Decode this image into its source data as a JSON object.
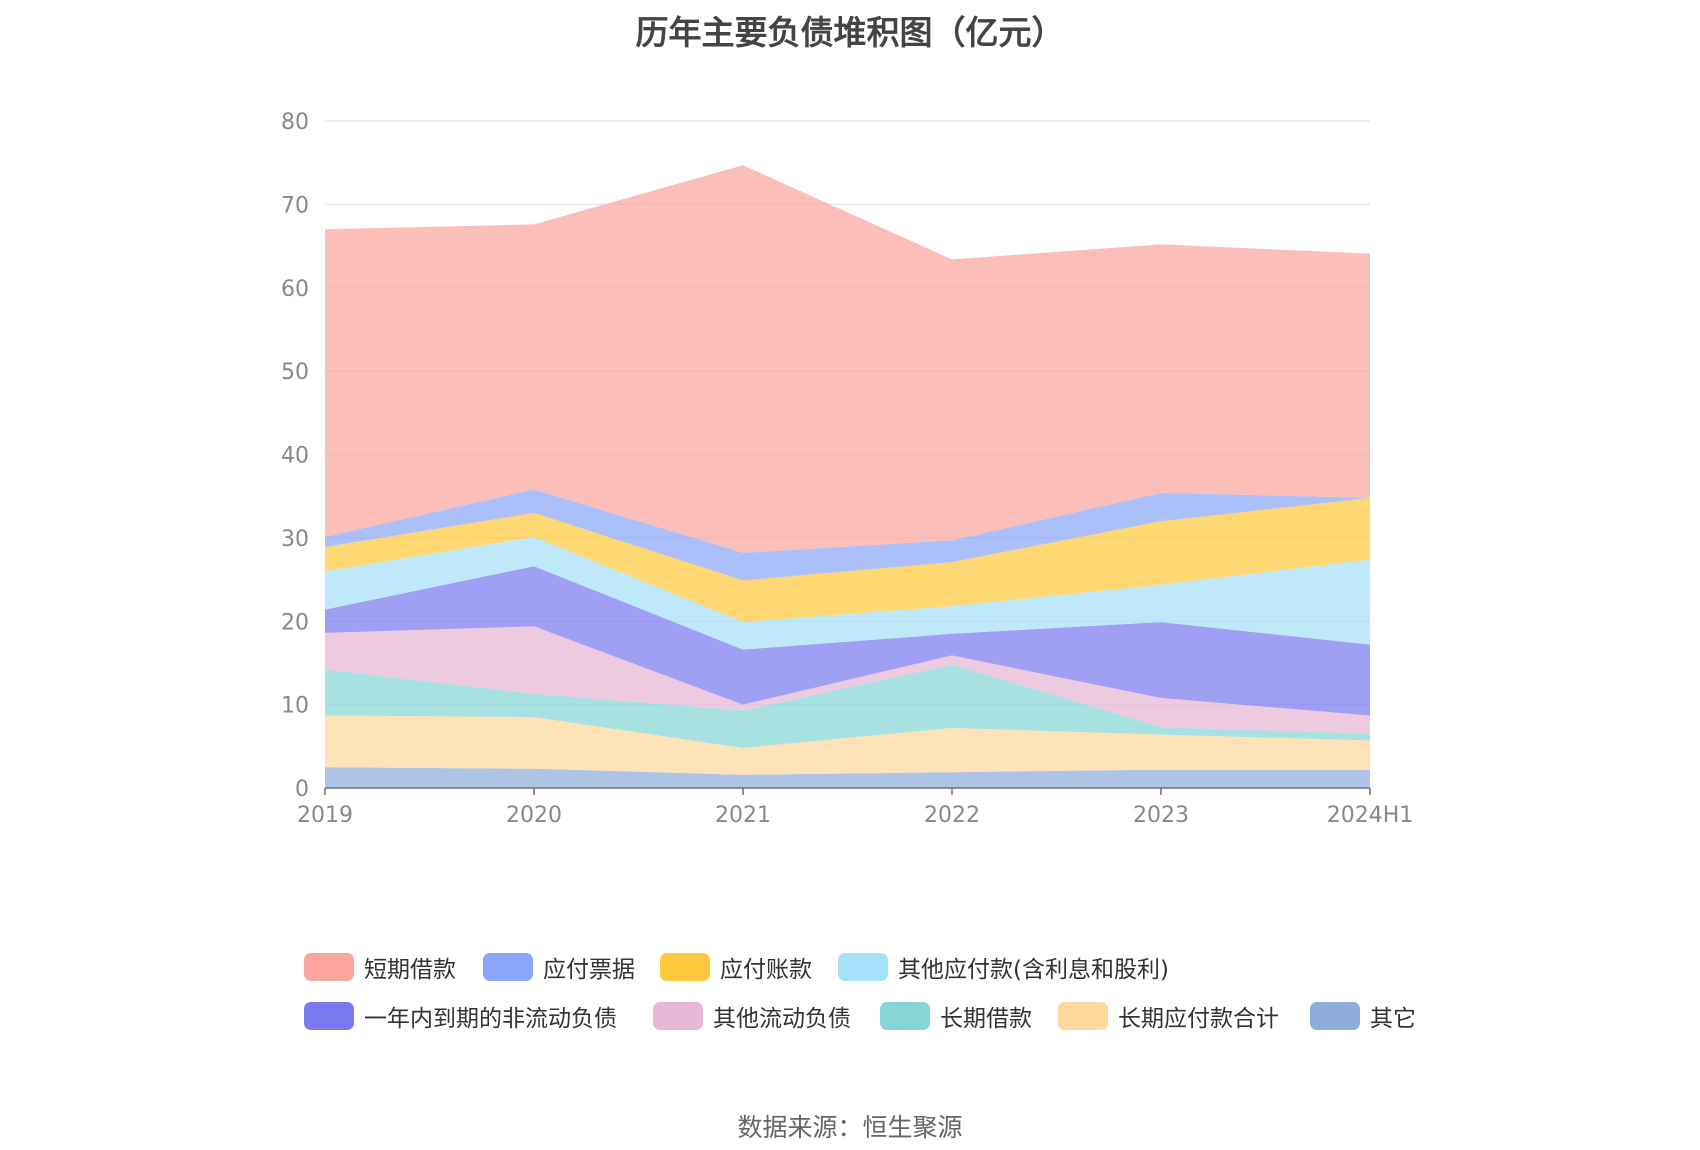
{
  "chart_data": {
    "type": "area",
    "stacked": true,
    "title": "历年主要负债堆积图（亿元）",
    "x": [
      "2019",
      "2020",
      "2021",
      "2022",
      "2023",
      "2024H1"
    ],
    "y_ticks": [
      "0",
      "10",
      "20",
      "30",
      "40",
      "50",
      "60",
      "70",
      "80"
    ],
    "ylim": [
      0,
      80
    ],
    "grid": true,
    "legend_position": "bottom",
    "series": [
      {
        "name": "其它",
        "color": "#8FADDC",
        "values": [
          2.5,
          2.3,
          1.6,
          1.9,
          2.2,
          2.2
        ]
      },
      {
        "name": "长期应付款合计",
        "color": "#FFD89C",
        "values": [
          6.2,
          6.2,
          3.2,
          5.3,
          4.2,
          3.5
        ]
      },
      {
        "name": "长期借款",
        "color": "#86D6D6",
        "values": [
          5.5,
          2.8,
          4.5,
          7.6,
          0.9,
          0.8
        ]
      },
      {
        "name": "其他流动负债",
        "color": "#E8B6D6",
        "values": [
          4.4,
          8.1,
          0.7,
          1.1,
          3.5,
          2.2
        ]
      },
      {
        "name": "一年内到期的非流动负债",
        "color": "#7A7AF0",
        "values": [
          2.8,
          7.2,
          6.6,
          2.6,
          9.1,
          8.5
        ]
      },
      {
        "name": "其他应付款(含利息和股利)",
        "color": "#A6E0FA",
        "values": [
          4.6,
          3.5,
          3.3,
          3.3,
          4.5,
          10.2
        ]
      },
      {
        "name": "应付账款",
        "color": "#FFC93D",
        "values": [
          2.9,
          2.9,
          5.0,
          5.3,
          7.6,
          7.4
        ]
      },
      {
        "name": "应付票据",
        "color": "#8AA6FA",
        "values": [
          1.2,
          2.8,
          3.3,
          2.6,
          3.4,
          0
        ]
      },
      {
        "name": "短期借款",
        "color": "#FBA59C",
        "values": [
          36.9,
          31.8,
          46.5,
          33.7,
          29.8,
          29.3
        ]
      }
    ]
  },
  "legend": {
    "row1": [
      {
        "label": "短期借款",
        "color": "#FBA59C"
      },
      {
        "label": "应付票据",
        "color": "#8AA6FA"
      },
      {
        "label": "应付账款",
        "color": "#FFC93D"
      },
      {
        "label": "其他应付款(含利息和股利)",
        "color": "#A6E0FA"
      }
    ],
    "row2": [
      {
        "label": "一年内到期的非流动负债",
        "color": "#7A7AF0"
      },
      {
        "label": "其他流动负债",
        "color": "#E8B6D6"
      },
      {
        "label": "长期借款",
        "color": "#86D6D6"
      },
      {
        "label": "长期应付款合计",
        "color": "#FFD89C"
      },
      {
        "label": "其它",
        "color": "#8FADDC"
      }
    ]
  },
  "source": "数据来源：恒生聚源"
}
